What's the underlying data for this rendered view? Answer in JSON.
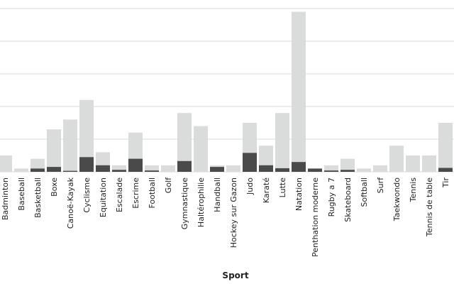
{
  "chart_data": {
    "type": "bar",
    "xlabel": "Sport",
    "grid": true,
    "categories": [
      "Badminton",
      "Baseball",
      "Basketball",
      "Boxe",
      "Canoë-Kayak",
      "Cyclisme",
      "Equitation",
      "Escalade",
      "Escrime",
      "Football",
      "Golf",
      "Gymnastique",
      "Haltérophilie",
      "Handball",
      "Hockey sur Gazon",
      "Judo",
      "Karaté",
      "Lutte",
      "Natation",
      "Penthation moderne",
      "Rugby a 7",
      "Skateboard",
      "Softball",
      "Surf",
      "Taekwondo",
      "Tennis",
      "Tennis de table",
      "Tir"
    ],
    "series": [
      {
        "values": [
          5,
          1,
          4,
          13,
          16,
          22,
          6,
          2,
          12,
          2,
          2,
          18,
          14,
          2,
          2,
          15,
          8,
          18,
          49,
          1,
          2,
          4,
          1,
          2,
          8,
          5,
          5,
          15
        ]
      },
      {
        "values": [
          0,
          0,
          1,
          1.5,
          0.3,
          4.5,
          2,
          0.6,
          4,
          0.4,
          0,
          3.3,
          0,
          1.5,
          0,
          5.8,
          2,
          1.1,
          3,
          1,
          0.4,
          0.6,
          0,
          0,
          0,
          0,
          0,
          1.2
        ]
      }
    ],
    "colors": {
      "background": "#d9dcdb",
      "foreground": "#4a4a4a"
    },
    "ylim": [
      0,
      50
    ]
  }
}
